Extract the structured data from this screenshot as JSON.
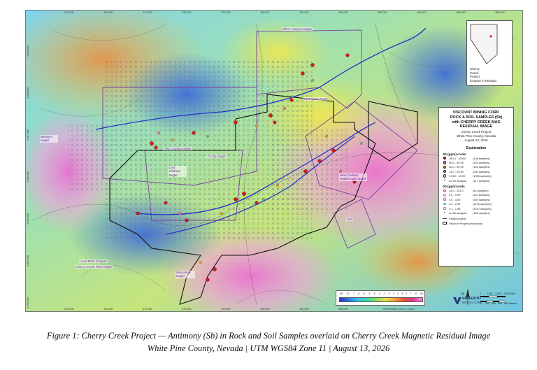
{
  "map": {
    "easting_ticks": [
      "675,000",
      "676,000",
      "677,000",
      "678,000",
      "679,000",
      "680,000",
      "681,000",
      "682,000",
      "683,000",
      "684,000",
      "685,000",
      "686,000"
    ],
    "northing_ticks": [
      "4,409,000",
      "4,408,000",
      "4,407,000",
      "4,406,000",
      "4,405,000",
      "4,404,000",
      "4,403,000"
    ],
    "targets": [
      {
        "label": "Silver Canyon target"
      },
      {
        "label": "Exchequer Fault"
      },
      {
        "label": "Western target"
      },
      {
        "label": "Flint Canyon target"
      },
      {
        "label": "Ti Cap target"
      },
      {
        "label": "Lost Chance target"
      },
      {
        "label": "New Century Rattlesnake target"
      },
      {
        "label": "Star"
      },
      {
        "label": "Cherry Creek Pass target"
      },
      {
        "label": "Lead Mine Canyon"
      },
      {
        "label": "Maryanne target"
      }
    ],
    "colors": {
      "rock_sample": "#d81b1b",
      "fault_line": "#2233cc",
      "property_boundary": "#111111",
      "target_outline": "#7b3fa0"
    }
  },
  "inset": {
    "label_lines": [
      "Cherry",
      "Creek",
      "Project",
      "location in Nevada"
    ]
  },
  "legend": {
    "company": [
      "VISCOUNT MINING CORP.",
      "ROCK & SOIL SAMPLES (Sb)",
      "with CHERRY CREEK MAG",
      "RESIDUAL IMAGE"
    ],
    "project": "Cherry Creek Project",
    "county": "White Pine County, Nevada",
    "date": "August 13, 2026",
    "explanation": "Explanation",
    "rocks_title": "Sb (ppm) rocks",
    "rocks": [
      {
        "range": "100.0 - 10000",
        "count": "(106 samples)",
        "color": "#d81b1b"
      },
      {
        "range": "50.0 - 99.99",
        "count": "(116 samples)",
        "color": "#e87aa4"
      },
      {
        "range": "30.0 - 49.99",
        "count": "(145 samples)",
        "color": "#f3a23a"
      },
      {
        "range": "13.0 - 29.99",
        "count": "(284 samples)",
        "color": "#6ac46a"
      },
      {
        "range": "0.025 - 14.99",
        "count": "(1326 samples)",
        "color": "#f5f5f5"
      },
      {
        "range": "no Sb analysis",
        "count": "(117 samples)",
        "color": "cross"
      }
    ],
    "soils_title": "Sb (ppm) soils",
    "soils": [
      {
        "range": "13.0 - 351.0",
        "count": "(42 samples)",
        "color": "#c0392b"
      },
      {
        "range": "5.0 - 9.99",
        "count": "(110 samples)",
        "color": "#e05aa0"
      },
      {
        "range": "3.0 - 4.99",
        "count": "(250 samples)",
        "color": "#9b59b6"
      },
      {
        "range": "2.0 - 2.99",
        "count": "(1470 samples)",
        "color": "#3aa0c0"
      },
      {
        "range": "0.1 - 1.99",
        "count": "(3707 samples)",
        "color": "#888888"
      },
      {
        "range": "no Sb analysis",
        "count": "(185 samples)",
        "color": "cross"
      }
    ],
    "existing_roads": "Existing roads",
    "property_boundary": "Viscount Property boundary"
  },
  "colorbar": {
    "labels": [
      "-59",
      "-12",
      "-7",
      "-6",
      "-5",
      "-4",
      "-3",
      "-2",
      "-1",
      "0",
      "1",
      "2",
      "3",
      "4",
      "7",
      "10",
      "18"
    ]
  },
  "scale": {
    "feet_labels": [
      "0",
      "1,000",
      "2,000",
      "3,000 Feet"
    ],
    "meter_labels": [
      "0",
      "200",
      "400",
      "600",
      "800 Meters"
    ]
  },
  "north": "N",
  "logo": {
    "line1": "VISCOUNT",
    "line2": "MINING CORP."
  },
  "utm_note": "UTM WGS84 Zone 11 meters",
  "caption": {
    "line1": "Figure 1: Cherry Creek Project — Antimony (Sb) in Rock and Soil Samples overlaid on Cherry Creek Magnetic Residual Image",
    "line2": "White Pine County, Nevada | UTM WGS84 Zone 11 | August 13, 2026"
  }
}
